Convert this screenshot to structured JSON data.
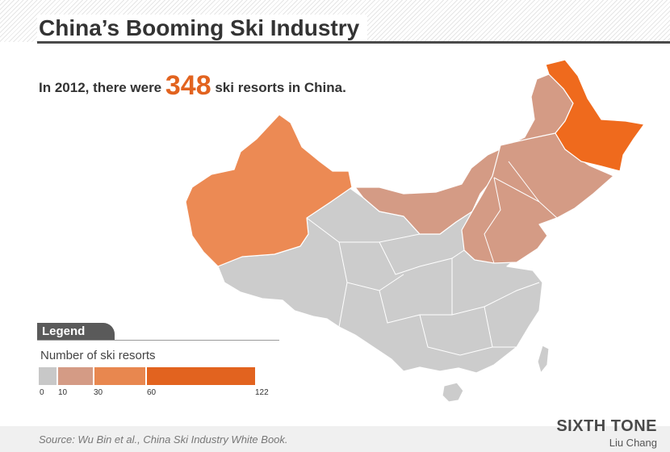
{
  "header": {
    "title": "China’s Booming Ski Industry",
    "subtitle_before": "In 2012, there were",
    "subtitle_number": "348",
    "subtitle_after": "ski resorts in China."
  },
  "legend": {
    "heading": "Legend",
    "caption": "Number of ski resorts",
    "bins": [
      {
        "from": 0,
        "to": 10,
        "color": "#c8c8c8"
      },
      {
        "from": 10,
        "to": 30,
        "color": "#d49b85"
      },
      {
        "from": 30,
        "to": 60,
        "color": "#e8874f"
      },
      {
        "from": 60,
        "to": 122,
        "color": "#e2631f"
      }
    ],
    "tick_labels": [
      "0",
      "10",
      "30",
      "60",
      "122"
    ]
  },
  "map": {
    "regions": [
      {
        "region": "Heilongjiang",
        "bin": "60-122",
        "color": "#ef6a1d"
      },
      {
        "region": "Xinjiang",
        "bin": "30-60",
        "color": "#ec8a54"
      },
      {
        "region": "Inner Mongolia",
        "bin": "10-30",
        "color": "#d49b85"
      },
      {
        "region": "Jilin",
        "bin": "10-30",
        "color": "#d49b85"
      },
      {
        "region": "Liaoning",
        "bin": "10-30",
        "color": "#d49b85"
      },
      {
        "region": "Hebei",
        "bin": "10-30",
        "color": "#d49b85"
      },
      {
        "region": "Shanxi",
        "bin": "10-30",
        "color": "#d49b85"
      },
      {
        "region": "Shandong",
        "bin": "10-30",
        "color": "#d49b85"
      },
      {
        "region": "Beijing",
        "bin": "10-30",
        "color": "#d49b85"
      },
      {
        "region": "Other provinces",
        "bin": "0-10",
        "color": "#cccccc"
      }
    ]
  },
  "footer": {
    "source": "Source: Wu Bin et al., China Ski Industry White Book.",
    "brand": "SIXTH TONE",
    "author": "Liu Chang"
  }
}
